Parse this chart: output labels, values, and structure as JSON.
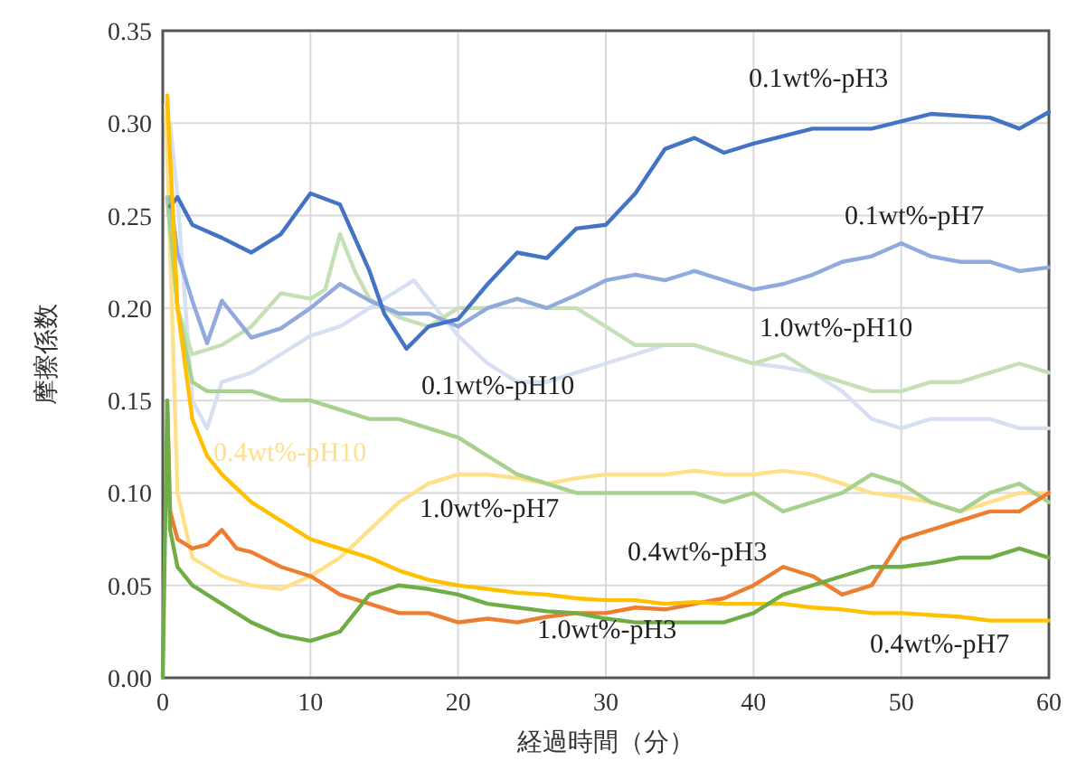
{
  "chart_data": {
    "type": "line",
    "xlabel": "経過時間（分）",
    "ylabel": "摩擦係数",
    "xlim": [
      0,
      60
    ],
    "ylim": [
      0,
      0.35
    ],
    "xticks": [
      0,
      10,
      20,
      30,
      40,
      50,
      60
    ],
    "yticks": [
      {
        "value": 0,
        "label": "0.00"
      },
      {
        "value": 0.05,
        "label": "0.05"
      },
      {
        "value": 0.1,
        "label": "0.10"
      },
      {
        "value": 0.15,
        "label": "0.15"
      },
      {
        "value": 0.2,
        "label": "0.20"
      },
      {
        "value": 0.25,
        "label": "0.25"
      },
      {
        "value": 0.3,
        "label": "0.30"
      },
      {
        "value": 0.35,
        "label": "0.35"
      }
    ],
    "grid": true,
    "legend": false,
    "marker": "none",
    "line_style": "solid",
    "series": [
      {
        "name": "0.1wt%-pH10",
        "color": "#d6e0f2",
        "x": [
          0.5,
          1,
          2,
          3,
          4,
          6,
          8,
          10,
          12,
          14,
          16,
          17,
          18,
          20,
          22,
          24,
          26,
          28,
          30,
          32,
          34,
          36,
          38,
          40,
          42,
          44,
          46,
          48,
          50,
          52,
          54,
          56,
          58,
          60
        ],
        "values": [
          0.3,
          0.26,
          0.15,
          0.135,
          0.16,
          0.165,
          0.175,
          0.185,
          0.19,
          0.2,
          0.21,
          0.215,
          0.205,
          0.185,
          0.17,
          0.16,
          0.16,
          0.165,
          0.17,
          0.175,
          0.18,
          0.18,
          0.175,
          0.17,
          0.168,
          0.165,
          0.155,
          0.14,
          0.135,
          0.14,
          0.14,
          0.14,
          0.135,
          0.135
        ]
      },
      {
        "name": "1.0wt%-pH10",
        "color": "#c5e0b4",
        "x": [
          0.3,
          1,
          2,
          4,
          6,
          8,
          10,
          11,
          12,
          13,
          14,
          16,
          18,
          20,
          22,
          24,
          26,
          28,
          30,
          32,
          34,
          36,
          38,
          40,
          42,
          44,
          46,
          48,
          50,
          52,
          54,
          56,
          58,
          60
        ],
        "values": [
          0.26,
          0.2,
          0.175,
          0.18,
          0.19,
          0.208,
          0.205,
          0.21,
          0.24,
          0.22,
          0.205,
          0.195,
          0.19,
          0.2,
          0.2,
          0.205,
          0.2,
          0.2,
          0.19,
          0.18,
          0.18,
          0.18,
          0.175,
          0.17,
          0.175,
          0.165,
          0.16,
          0.155,
          0.155,
          0.16,
          0.16,
          0.165,
          0.17,
          0.165
        ]
      },
      {
        "name": "0.4wt%-pH10",
        "color": "#ffe08a",
        "x": [
          0.2,
          1,
          2,
          3,
          4,
          6,
          8,
          10,
          12,
          14,
          16,
          18,
          20,
          22,
          24,
          26,
          28,
          30,
          32,
          34,
          36,
          38,
          40,
          42,
          44,
          46,
          48,
          50,
          52,
          54,
          56,
          58,
          60
        ],
        "values": [
          0.31,
          0.1,
          0.065,
          0.06,
          0.055,
          0.05,
          0.048,
          0.055,
          0.065,
          0.08,
          0.095,
          0.105,
          0.11,
          0.11,
          0.108,
          0.105,
          0.108,
          0.11,
          0.11,
          0.11,
          0.112,
          0.11,
          0.11,
          0.112,
          0.11,
          0.105,
          0.1,
          0.098,
          0.095,
          0.09,
          0.095,
          0.1,
          0.1
        ]
      },
      {
        "name": "1.0wt%-pH7",
        "color": "#a9d18e",
        "x": [
          0.3,
          1,
          2,
          3,
          6,
          8,
          10,
          12,
          14,
          16,
          18,
          20,
          22,
          24,
          26,
          28,
          30,
          32,
          34,
          36,
          38,
          40,
          42,
          44,
          46,
          48,
          50,
          52,
          54,
          56,
          58,
          60
        ],
        "values": [
          0.26,
          0.2,
          0.16,
          0.155,
          0.155,
          0.15,
          0.15,
          0.145,
          0.14,
          0.14,
          0.135,
          0.13,
          0.12,
          0.11,
          0.105,
          0.1,
          0.1,
          0.1,
          0.1,
          0.1,
          0.095,
          0.1,
          0.09,
          0.095,
          0.1,
          0.11,
          0.105,
          0.095,
          0.09,
          0.1,
          0.105,
          0.095
        ]
      },
      {
        "name": "0.1wt%-pH7",
        "color": "#8faadc",
        "x": [
          0.5,
          1,
          2,
          3,
          4,
          6,
          8,
          10,
          12,
          14,
          16,
          18,
          20,
          22,
          24,
          26,
          28,
          30,
          32,
          34,
          36,
          38,
          40,
          42,
          44,
          46,
          48,
          50,
          52,
          54,
          56,
          58,
          60
        ],
        "values": [
          0.26,
          0.23,
          0.204,
          0.181,
          0.204,
          0.184,
          0.189,
          0.2,
          0.213,
          0.204,
          0.197,
          0.197,
          0.19,
          0.2,
          0.205,
          0.2,
          0.207,
          0.215,
          0.218,
          0.215,
          0.22,
          0.215,
          0.21,
          0.213,
          0.218,
          0.225,
          0.228,
          0.235,
          0.228,
          0.225,
          0.225,
          0.22,
          0.222
        ]
      },
      {
        "name": "0.1wt%-pH3",
        "color": "#4472c4",
        "x": [
          0.5,
          1,
          2,
          4,
          6,
          8,
          10,
          12,
          14,
          15,
          16.5,
          18,
          20,
          22,
          24,
          26,
          28,
          30,
          32,
          34,
          36,
          38,
          40,
          44,
          48,
          52,
          56,
          58,
          60
        ],
        "values": [
          0.255,
          0.26,
          0.245,
          0.238,
          0.23,
          0.24,
          0.262,
          0.256,
          0.22,
          0.197,
          0.178,
          0.19,
          0.194,
          0.213,
          0.23,
          0.227,
          0.243,
          0.245,
          0.262,
          0.286,
          0.292,
          0.284,
          0.289,
          0.297,
          0.297,
          0.305,
          0.303,
          0.297,
          0.306
        ]
      },
      {
        "name": "0.4wt%-pH3",
        "color": "#ed7d31",
        "x": [
          0.3,
          0.5,
          1,
          2,
          3,
          4,
          5,
          6,
          8,
          10,
          12,
          14,
          16,
          18,
          20,
          22,
          24,
          26,
          28,
          30,
          32,
          34,
          36,
          38,
          40,
          42,
          44,
          46,
          48,
          50,
          52,
          54,
          56,
          58,
          60
        ],
        "values": [
          0.15,
          0.09,
          0.075,
          0.07,
          0.072,
          0.08,
          0.07,
          0.068,
          0.06,
          0.055,
          0.045,
          0.04,
          0.035,
          0.035,
          0.03,
          0.032,
          0.03,
          0.033,
          0.035,
          0.035,
          0.038,
          0.037,
          0.04,
          0.043,
          0.05,
          0.06,
          0.055,
          0.045,
          0.05,
          0.075,
          0.08,
          0.085,
          0.09,
          0.09,
          0.1
        ]
      },
      {
        "name": "0.4wt%-pH7",
        "color": "#ffc000",
        "x": [
          0.3,
          1,
          2,
          3,
          4,
          6,
          8,
          10,
          12,
          14,
          16,
          18,
          20,
          22,
          24,
          26,
          28,
          30,
          32,
          34,
          36,
          38,
          40,
          42,
          44,
          46,
          48,
          50,
          52,
          54,
          56,
          58,
          60
        ],
        "values": [
          0.315,
          0.2,
          0.14,
          0.12,
          0.11,
          0.095,
          0.085,
          0.075,
          0.07,
          0.065,
          0.058,
          0.053,
          0.05,
          0.048,
          0.046,
          0.045,
          0.043,
          0.042,
          0.042,
          0.04,
          0.041,
          0.04,
          0.04,
          0.04,
          0.038,
          0.037,
          0.035,
          0.035,
          0.034,
          0.033,
          0.031,
          0.031,
          0.031
        ]
      },
      {
        "name": "1.0wt%-pH3",
        "color": "#70ad47",
        "x": [
          0,
          0.3,
          0.5,
          1,
          2,
          4,
          6,
          8,
          10,
          12,
          14,
          16,
          18,
          20,
          22,
          24,
          26,
          28,
          30,
          32,
          34,
          36,
          38,
          40,
          42,
          44,
          46,
          48,
          50,
          52,
          54,
          56,
          58,
          60
        ],
        "values": [
          0,
          0.15,
          0.08,
          0.06,
          0.05,
          0.04,
          0.03,
          0.023,
          0.02,
          0.025,
          0.045,
          0.05,
          0.048,
          0.045,
          0.04,
          0.038,
          0.036,
          0.035,
          0.032,
          0.03,
          0.03,
          0.03,
          0.03,
          0.035,
          0.045,
          0.05,
          0.055,
          0.06,
          0.06,
          0.062,
          0.065,
          0.065,
          0.07,
          0.065
        ]
      }
    ]
  }
}
